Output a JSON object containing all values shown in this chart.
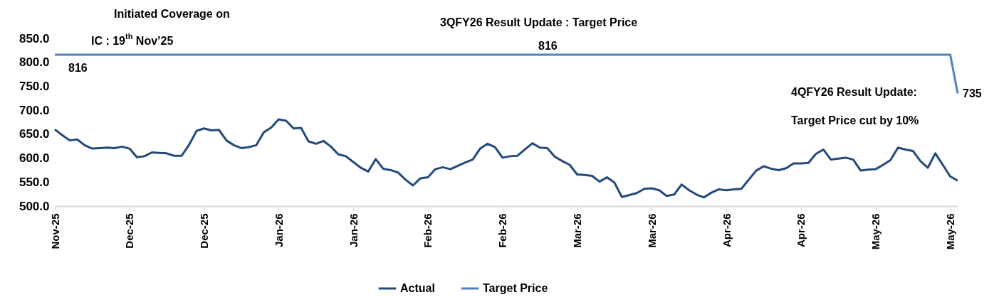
{
  "chart_data": {
    "type": "line",
    "categories": [
      "Nov-25",
      null,
      null,
      null,
      null,
      null,
      null,
      null,
      null,
      null,
      "Dec-25",
      null,
      null,
      null,
      null,
      null,
      null,
      null,
      null,
      null,
      "Dec-25",
      null,
      null,
      null,
      null,
      null,
      null,
      null,
      null,
      null,
      "Jan-26",
      null,
      null,
      null,
      null,
      null,
      null,
      null,
      null,
      null,
      "Jan-26",
      null,
      null,
      null,
      null,
      null,
      null,
      null,
      null,
      null,
      "Feb-26",
      null,
      null,
      null,
      null,
      null,
      null,
      null,
      null,
      null,
      "Feb-26",
      null,
      null,
      null,
      null,
      null,
      null,
      null,
      null,
      null,
      "Mar-26",
      null,
      null,
      null,
      null,
      null,
      null,
      null,
      null,
      null,
      "Mar-26",
      null,
      null,
      null,
      null,
      null,
      null,
      null,
      null,
      null,
      "Apr-26",
      null,
      null,
      null,
      null,
      null,
      null,
      null,
      null,
      null,
      "Apr-26",
      null,
      null,
      null,
      null,
      null,
      null,
      null,
      null,
      null,
      "May-26",
      null,
      null,
      null,
      null,
      null,
      null,
      null,
      null,
      null,
      "May-26",
      null
    ],
    "series": [
      {
        "name": "Actual",
        "color": "#24497b",
        "values": [
          660,
          648,
          637,
          639,
          627,
          620,
          621,
          622,
          621,
          624,
          620,
          602,
          604,
          612,
          611,
          610,
          605,
          605,
          628,
          657,
          662,
          658,
          659,
          637,
          627,
          621,
          623,
          627,
          654,
          664,
          681,
          678,
          662,
          663,
          635,
          630,
          636,
          624,
          608,
          604,
          592,
          580,
          572,
          598,
          578,
          575,
          570,
          555,
          543,
          558,
          560,
          577,
          581,
          577,
          584,
          591,
          597,
          620,
          630,
          623,
          601,
          604,
          605,
          618,
          631,
          622,
          621,
          603,
          594,
          586,
          566,
          565,
          563,
          551,
          560,
          549,
          519,
          523,
          527,
          536,
          537,
          533,
          521,
          524,
          545,
          533,
          524,
          518,
          528,
          535,
          533,
          535,
          536,
          555,
          574,
          583,
          578,
          575,
          579,
          589,
          589,
          590,
          609,
          618,
          597,
          599,
          601,
          597,
          574,
          576,
          577,
          586,
          596,
          622,
          618,
          615,
          594,
          580,
          610,
          586,
          562,
          553
        ]
      },
      {
        "name": "Target Price",
        "color": "#4f81c4",
        "values": [
          816,
          816,
          816,
          816,
          816,
          816,
          816,
          816,
          816,
          816,
          816,
          816,
          816,
          816,
          816,
          816,
          816,
          816,
          816,
          816,
          816,
          816,
          816,
          816,
          816,
          816,
          816,
          816,
          816,
          816,
          816,
          816,
          816,
          816,
          816,
          816,
          816,
          816,
          816,
          816,
          816,
          816,
          816,
          816,
          816,
          816,
          816,
          816,
          816,
          816,
          816,
          816,
          816,
          816,
          816,
          816,
          816,
          816,
          816,
          816,
          816,
          816,
          816,
          816,
          816,
          816,
          816,
          816,
          816,
          816,
          816,
          816,
          816,
          816,
          816,
          816,
          816,
          816,
          816,
          816,
          816,
          816,
          816,
          816,
          816,
          816,
          816,
          816,
          816,
          816,
          816,
          816,
          816,
          816,
          816,
          816,
          816,
          816,
          816,
          816,
          816,
          816,
          816,
          816,
          816,
          816,
          816,
          816,
          816,
          816,
          816,
          816,
          816,
          816,
          816,
          816,
          816,
          816,
          816,
          816,
          816,
          735
        ]
      }
    ],
    "ylim": [
      500,
      850
    ],
    "yticks": [
      {
        "value": 500,
        "label": "500.0"
      },
      {
        "value": 550,
        "label": "550.0"
      },
      {
        "value": 600,
        "label": "600.0"
      },
      {
        "value": 650,
        "label": "650.0"
      },
      {
        "value": 700,
        "label": "700.0"
      },
      {
        "value": 750,
        "label": "750.0"
      },
      {
        "value": 800,
        "label": "800.0"
      },
      {
        "value": 850,
        "label": "850.0"
      }
    ],
    "grid": false,
    "legend": "bottom",
    "annotations": [
      "Initiated Coverage on",
      "IC : 19$^{th}$ Nov’25",
      "816",
      "3QFY26 Result Update : Target Price",
      "816",
      "4QFY26 Result Update:",
      "Target Price cut by 10%",
      "735"
    ]
  }
}
